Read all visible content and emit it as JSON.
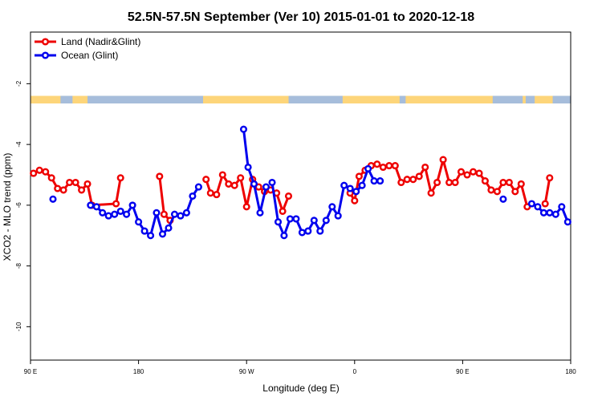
{
  "chart_data": {
    "type": "line",
    "title": "52.5N-57.5N September (Ver 10)   2015-01-01 to 2020-12-18",
    "xlabel": "Longitude (deg E)",
    "ylabel": "XCO2 - MLO trend (ppm)",
    "xlim": [
      90,
      450
    ],
    "ylim": [
      -11.1,
      -0.3
    ],
    "x_ticks": [
      {
        "value": 90,
        "label": "90 E"
      },
      {
        "value": 162,
        "label": "180"
      },
      {
        "value": 234,
        "label": "90 W"
      },
      {
        "value": 306,
        "label": "0"
      },
      {
        "value": 378,
        "label": "90 E"
      },
      {
        "value": 450,
        "label": "180"
      }
    ],
    "y_ticks": [
      {
        "value": -2,
        "label": "-2"
      },
      {
        "value": -4,
        "label": "-4"
      },
      {
        "value": -6,
        "label": "-6"
      },
      {
        "value": -8,
        "label": "-8"
      },
      {
        "value": -10,
        "label": "-10"
      }
    ],
    "legend_position": "top-left",
    "grid": false,
    "land_strip": {
      "y_top": -2.4,
      "y_bottom": -2.65,
      "ocean_color": "#a6bddb",
      "land_color": "#fdd57a"
    },
    "series": [
      {
        "name": "Land (Nadir&Glint)",
        "color": "#ee0000",
        "segments": [
          [
            [
              92,
              -4.95
            ],
            [
              96,
              -4.85
            ],
            [
              100,
              -4.9
            ],
            [
              104,
              -5.1
            ],
            [
              108,
              -5.45
            ],
            [
              112,
              -5.5
            ],
            [
              116,
              -5.25
            ],
            [
              120,
              -5.25
            ],
            [
              124,
              -5.5
            ],
            [
              128,
              -5.3
            ],
            [
              131,
              -6.0
            ],
            [
              147,
              -5.95
            ],
            [
              150,
              -5.1
            ]
          ],
          [
            [
              176,
              -5.05
            ],
            [
              179,
              -6.3
            ],
            [
              183,
              -6.5
            ]
          ],
          [
            [
              207,
              -5.15
            ],
            [
              210,
              -5.6
            ],
            [
              214,
              -5.65
            ],
            [
              218,
              -5.0
            ],
            [
              222,
              -5.3
            ],
            [
              226,
              -5.35
            ],
            [
              230,
              -5.1
            ],
            [
              234,
              -6.05
            ],
            [
              238,
              -5.15
            ],
            [
              242,
              -5.4
            ],
            [
              246,
              -5.55
            ],
            [
              250,
              -5.5
            ],
            [
              254,
              -5.6
            ],
            [
              258,
              -6.2
            ],
            [
              262,
              -5.7
            ]
          ],
          [
            [
              303,
              -5.6
            ],
            [
              306,
              -5.85
            ],
            [
              309,
              -5.05
            ],
            [
              313,
              -4.85
            ],
            [
              317,
              -4.7
            ],
            [
              321,
              -4.65
            ],
            [
              325,
              -4.75
            ],
            [
              329,
              -4.7
            ],
            [
              333,
              -4.7
            ],
            [
              337,
              -5.25
            ],
            [
              341,
              -5.15
            ],
            [
              345,
              -5.15
            ],
            [
              349,
              -5.05
            ],
            [
              353,
              -4.75
            ],
            [
              357,
              -5.6
            ],
            [
              361,
              -5.25
            ],
            [
              365,
              -4.5
            ],
            [
              369,
              -5.25
            ],
            [
              373,
              -5.25
            ],
            [
              377,
              -4.9
            ],
            [
              381,
              -5.0
            ],
            [
              385,
              -4.9
            ],
            [
              389,
              -4.95
            ],
            [
              393,
              -5.2
            ],
            [
              397,
              -5.5
            ],
            [
              401,
              -5.55
            ],
            [
              405,
              -5.25
            ],
            [
              409,
              -5.25
            ],
            [
              413,
              -5.55
            ],
            [
              417,
              -5.3
            ],
            [
              421,
              -6.05
            ]
          ],
          [
            [
              433,
              -5.95
            ],
            [
              436,
              -5.1
            ]
          ]
        ]
      },
      {
        "name": "Ocean (Glint)",
        "color": "#0000ee",
        "segments": [
          [
            [
              105,
              -5.8
            ]
          ],
          [
            [
              130,
              -6.0
            ],
            [
              134,
              -6.05
            ],
            [
              138,
              -6.25
            ],
            [
              142,
              -6.35
            ],
            [
              146,
              -6.3
            ],
            [
              150,
              -6.2
            ],
            [
              154,
              -6.3
            ],
            [
              158,
              -6.0
            ],
            [
              162,
              -6.55
            ],
            [
              166,
              -6.85
            ],
            [
              170,
              -7.0
            ],
            [
              174,
              -6.25
            ],
            [
              178,
              -6.95
            ],
            [
              182,
              -6.75
            ],
            [
              186,
              -6.3
            ],
            [
              190,
              -6.35
            ],
            [
              194,
              -6.25
            ],
            [
              198,
              -5.7
            ],
            [
              202,
              -5.4
            ]
          ],
          [
            [
              232,
              -3.5
            ],
            [
              235,
              -4.75
            ],
            [
              239,
              -5.3
            ],
            [
              243,
              -6.25
            ],
            [
              247,
              -5.4
            ]
          ],
          [
            [
              251,
              -5.25
            ],
            [
              255,
              -6.55
            ],
            [
              259,
              -7.0
            ],
            [
              263,
              -6.45
            ],
            [
              267,
              -6.45
            ],
            [
              271,
              -6.9
            ],
            [
              275,
              -6.85
            ],
            [
              279,
              -6.5
            ],
            [
              283,
              -6.85
            ],
            [
              287,
              -6.5
            ],
            [
              291,
              -6.05
            ],
            [
              295,
              -6.35
            ],
            [
              299,
              -5.35
            ],
            [
              303,
              -5.45
            ],
            [
              307,
              -5.55
            ],
            [
              311,
              -5.35
            ],
            [
              315,
              -4.8
            ],
            [
              319,
              -5.2
            ],
            [
              323,
              -5.2
            ]
          ],
          [
            [
              405,
              -5.8
            ]
          ],
          [
            [
              424,
              -5.95
            ],
            [
              428,
              -6.05
            ],
            [
              432,
              -6.25
            ],
            [
              436,
              -6.25
            ],
            [
              440,
              -6.3
            ],
            [
              444,
              -6.05
            ],
            [
              448,
              -6.55
            ]
          ]
        ]
      }
    ]
  }
}
